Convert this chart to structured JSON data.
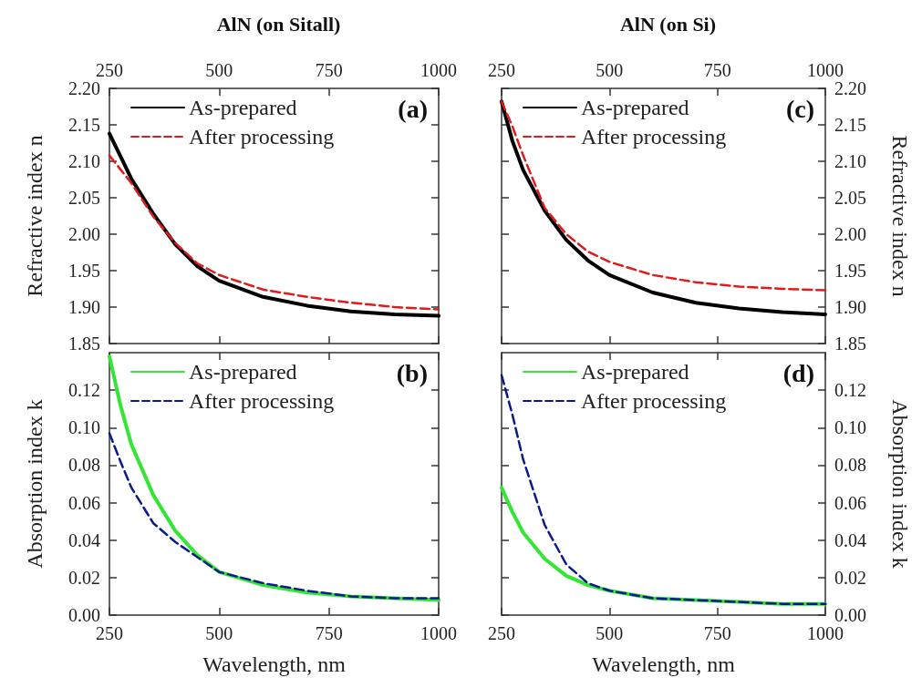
{
  "chart_data": [
    {
      "type": "line",
      "title": "AlN (on Sitall)",
      "ylabel": "Refractive index n",
      "annotations": [
        "(a)"
      ],
      "xlim": [
        250,
        1000
      ],
      "xticks": [
        250,
        500,
        750,
        1000
      ],
      "ylim": [
        1.85,
        2.2
      ],
      "yticks": [
        1.85,
        {
          "value": 1.9,
          "label": "1.90"
        },
        1.95,
        {
          "value": 2.0,
          "label": "2.00"
        },
        2.05,
        {
          "value": 2.1,
          "label": "2.10"
        },
        2.15,
        {
          "value": 2.2,
          "label": "2.20"
        }
      ],
      "legend": "top left",
      "line_style": "solid",
      "marker": "none",
      "x": [
        250,
        300,
        350,
        400,
        450,
        500,
        600,
        700,
        800,
        900,
        1000
      ],
      "series": [
        {
          "name": "As-prepared",
          "color": "#000000",
          "values": [
            2.138,
            2.076,
            2.028,
            1.986,
            1.956,
            1.936,
            1.914,
            1.902,
            1.894,
            1.89,
            1.888
          ]
        },
        {
          "name": "After processing",
          "color": "#e31a1c",
          "line_style": "dashed",
          "values": [
            2.108,
            2.07,
            2.024,
            1.988,
            1.96,
            1.944,
            1.924,
            1.914,
            1.906,
            1.9,
            1.897
          ]
        }
      ]
    },
    {
      "type": "line",
      "title": "AlN (on Si)",
      "y2label": "Refractive index n",
      "annotations": [
        "(c)"
      ],
      "xlim": [
        250,
        1000
      ],
      "xticks": [
        250,
        500,
        750,
        1000
      ],
      "y2lim": [
        1.85,
        2.2
      ],
      "y2ticks": [
        1.85,
        {
          "value": 1.9,
          "label": "1.90"
        },
        1.95,
        {
          "value": 2.0,
          "label": "2.00"
        },
        2.05,
        {
          "value": 2.1,
          "label": "2.10"
        },
        2.15,
        {
          "value": 2.2,
          "label": "2.20"
        }
      ],
      "legend": "top left",
      "line_style": "solid",
      "marker": "none",
      "x": [
        250,
        275,
        300,
        350,
        400,
        450,
        500,
        600,
        700,
        800,
        900,
        1000
      ],
      "series": [
        {
          "name": "As-prepared",
          "color": "#000000",
          "axis": "y2",
          "values": [
            2.182,
            2.128,
            2.088,
            2.032,
            1.992,
            1.964,
            1.944,
            1.92,
            1.906,
            1.898,
            1.893,
            1.89
          ]
        },
        {
          "name": "After processing",
          "color": "#e31a1c",
          "axis": "y2",
          "line_style": "dashed",
          "values": [
            2.182,
            2.148,
            2.108,
            2.036,
            2.0,
            1.976,
            1.962,
            1.944,
            1.934,
            1.928,
            1.925,
            1.923
          ]
        }
      ]
    },
    {
      "type": "line",
      "xlabel": "Wavelength, nm",
      "ylabel": "Absorption index k",
      "annotations": [
        "(b)"
      ],
      "xlim": [
        250,
        1000
      ],
      "xticks": [
        250,
        500,
        750,
        1000
      ],
      "ylim": [
        0,
        0.14
      ],
      "yticks": [
        {
          "value": 0,
          "label": "0.00"
        },
        0.02,
        0.04,
        0.06,
        0.08,
        {
          "value": 0.1,
          "label": "0.10"
        },
        0.12
      ],
      "legend": "top left",
      "line_style": "solid",
      "marker": "none",
      "x": [
        250,
        275,
        300,
        350,
        400,
        450,
        500,
        600,
        700,
        800,
        900,
        1000
      ],
      "series": [
        {
          "name": "As-prepared",
          "color": "#33e633",
          "values": [
            0.138,
            0.112,
            0.091,
            0.064,
            0.045,
            0.032,
            0.023,
            0.016,
            0.012,
            0.01,
            0.009,
            0.008
          ]
        },
        {
          "name": "After processing",
          "color": "#0a1a8c",
          "line_style": "dashed",
          "values": [
            0.097,
            0.082,
            0.068,
            0.049,
            0.039,
            0.031,
            0.023,
            0.017,
            0.013,
            0.01,
            0.009,
            0.009
          ]
        }
      ]
    },
    {
      "type": "line",
      "xlabel": "Wavelength, nm",
      "y2label": "Absorption index k",
      "annotations": [
        "(d)"
      ],
      "xlim": [
        250,
        1000
      ],
      "xticks": [
        250,
        500,
        750,
        1000
      ],
      "y2lim": [
        0,
        0.14
      ],
      "y2ticks": [
        {
          "value": 0,
          "label": "0.00"
        },
        0.02,
        0.04,
        0.06,
        0.08,
        {
          "value": 0.1,
          "label": "0.10"
        },
        0.12
      ],
      "legend": "top left",
      "line_style": "solid",
      "marker": "none",
      "x": [
        250,
        275,
        300,
        350,
        400,
        450,
        500,
        600,
        700,
        800,
        900,
        1000
      ],
      "series": [
        {
          "name": "As-prepared",
          "color": "#33e633",
          "axis": "y2",
          "values": [
            0.068,
            0.055,
            0.044,
            0.03,
            0.021,
            0.016,
            0.013,
            0.009,
            0.008,
            0.007,
            0.006,
            0.006
          ]
        },
        {
          "name": "After processing",
          "color": "#0a1a8c",
          "axis": "y2",
          "line_style": "dashed",
          "values": [
            0.128,
            0.107,
            0.083,
            0.048,
            0.027,
            0.017,
            0.013,
            0.009,
            0.008,
            0.007,
            0.006,
            0.006
          ]
        }
      ]
    }
  ]
}
